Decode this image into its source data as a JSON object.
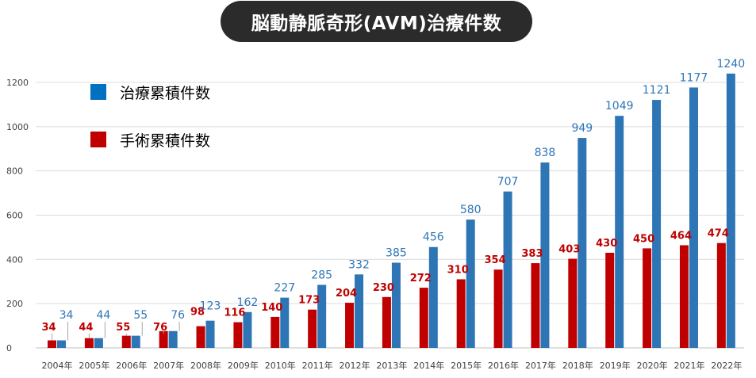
{
  "title": "脳動静脈奇形(AVM)治療件数",
  "chart_data": {
    "type": "bar",
    "title": "脳動静脈奇形(AVM)治療件数",
    "xlabel": "",
    "ylabel": "",
    "categories": [
      "2004年",
      "2005年",
      "2006年",
      "2007年",
      "2008年",
      "2009年",
      "2010年",
      "2011年",
      "2012年",
      "2013年",
      "2014年",
      "2015年",
      "2016年",
      "2017年",
      "2018年",
      "2019年",
      "2020年",
      "2021年",
      "2022年"
    ],
    "yticks": [
      "0",
      "200",
      "400",
      "600",
      "800",
      "1000",
      "1200"
    ],
    "ylim": [
      0,
      1300
    ],
    "grid": true,
    "legend_position": "top-left",
    "series": [
      {
        "name": "手術累積件数",
        "color": "#c00000",
        "label_color": "#c00000",
        "values": [
          34,
          44,
          55,
          76,
          98,
          116,
          140,
          173,
          204,
          230,
          272,
          310,
          354,
          383,
          403,
          430,
          450,
          464,
          474
        ]
      },
      {
        "name": "治療累積件数",
        "color": "#2e75b6",
        "label_color": "#2e75b6",
        "values": [
          34,
          44,
          55,
          76,
          123,
          162,
          227,
          285,
          332,
          385,
          456,
          580,
          707,
          838,
          949,
          1049,
          1121,
          1177,
          1240
        ]
      }
    ],
    "legend": [
      {
        "label": "治療累積件数",
        "color": "#0070c0"
      },
      {
        "label": "手術累積件数",
        "color": "#c00000"
      }
    ]
  }
}
